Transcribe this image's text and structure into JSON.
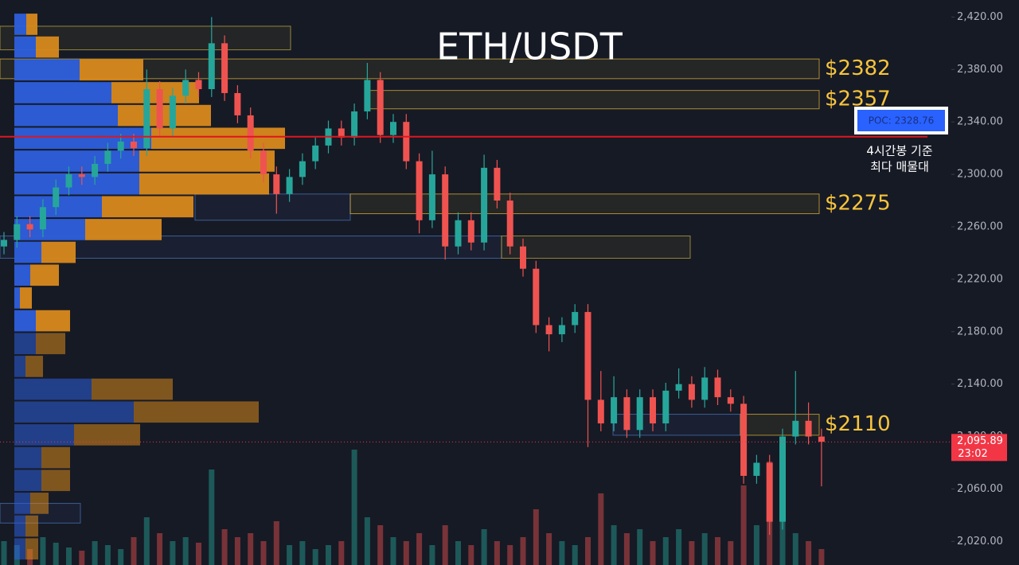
{
  "chart_data": {
    "type": "candlestick",
    "title": "ETH/USDT",
    "ylim": [
      2002,
      2433
    ],
    "yticks": [
      {
        "value": 2020,
        "label": "2,020.00"
      },
      {
        "value": 2060,
        "label": "2,060.00"
      },
      {
        "value": 2100,
        "label": "2,100.00"
      },
      {
        "value": 2140,
        "label": "2,140.00"
      },
      {
        "value": 2180,
        "label": "2,180.00"
      },
      {
        "value": 2220,
        "label": "2,220.00"
      },
      {
        "value": 2260,
        "label": "2,260.00"
      },
      {
        "value": 2300,
        "label": "2,300.00"
      },
      {
        "value": 2340,
        "label": "2,340.00"
      },
      {
        "value": 2380,
        "label": "2,380.00"
      },
      {
        "value": 2420,
        "label": "2,420.00"
      }
    ],
    "up_color": "#26a69a",
    "down_color": "#ef5350",
    "open": [
      2245,
      2250,
      2262,
      2258,
      2275,
      2290,
      2300,
      2298,
      2308,
      2318,
      2325,
      2320,
      2365,
      2335,
      2360,
      2372,
      2365,
      2400,
      2362,
      2345,
      2318,
      2300,
      2285,
      2298,
      2310,
      2322,
      2335,
      2328,
      2348,
      2372,
      2330,
      2340,
      2310,
      2265,
      2300,
      2245,
      2265,
      2248,
      2305,
      2280,
      2245,
      2228,
      2185,
      2178,
      2185,
      2195,
      2128,
      2110,
      2130,
      2105,
      2130,
      2110,
      2135,
      2140,
      2128,
      2145,
      2130,
      2125,
      2070,
      2080,
      2035,
      2100,
      2112,
      2100
    ],
    "high": [
      2256,
      2268,
      2268,
      2281,
      2296,
      2306,
      2306,
      2314,
      2324,
      2331,
      2331,
      2380,
      2371,
      2366,
      2380,
      2378,
      2420,
      2406,
      2368,
      2351,
      2324,
      2306,
      2304,
      2316,
      2328,
      2341,
      2341,
      2354,
      2385,
      2378,
      2346,
      2346,
      2316,
      2318,
      2306,
      2271,
      2271,
      2315,
      2311,
      2286,
      2251,
      2234,
      2191,
      2191,
      2201,
      2201,
      2150,
      2146,
      2136,
      2136,
      2136,
      2141,
      2152,
      2146,
      2153,
      2151,
      2136,
      2131,
      2086,
      2086,
      2106,
      2150,
      2126,
      2106
    ],
    "low": [
      2239,
      2244,
      2252,
      2252,
      2269,
      2284,
      2292,
      2292,
      2302,
      2312,
      2314,
      2314,
      2329,
      2329,
      2354,
      2359,
      2359,
      2356,
      2339,
      2312,
      2294,
      2270,
      2279,
      2292,
      2304,
      2316,
      2322,
      2322,
      2342,
      2324,
      2324,
      2304,
      2255,
      2259,
      2235,
      2239,
      2242,
      2242,
      2274,
      2239,
      2222,
      2179,
      2165,
      2172,
      2179,
      2092,
      2104,
      2104,
      2099,
      2099,
      2104,
      2104,
      2129,
      2122,
      2122,
      2124,
      2119,
      2064,
      2064,
      2025,
      2029,
      2094,
      2094,
      2062
    ],
    "close": [
      2250,
      2262,
      2258,
      2275,
      2290,
      2300,
      2298,
      2308,
      2318,
      2325,
      2320,
      2365,
      2335,
      2360,
      2372,
      2365,
      2400,
      2362,
      2345,
      2318,
      2300,
      2285,
      2298,
      2310,
      2322,
      2335,
      2328,
      2348,
      2372,
      2330,
      2340,
      2310,
      2265,
      2300,
      2245,
      2265,
      2248,
      2305,
      2280,
      2245,
      2228,
      2185,
      2178,
      2185,
      2195,
      2128,
      2110,
      2130,
      2105,
      2130,
      2110,
      2135,
      2140,
      2128,
      2145,
      2130,
      2125,
      2070,
      2080,
      2035,
      2100,
      2112,
      2100,
      2096
    ],
    "volume": [
      30,
      25,
      20,
      35,
      28,
      22,
      18,
      30,
      25,
      20,
      35,
      60,
      40,
      30,
      35,
      28,
      120,
      45,
      35,
      40,
      30,
      55,
      25,
      30,
      20,
      25,
      30,
      145,
      60,
      50,
      35,
      30,
      40,
      25,
      50,
      30,
      25,
      45,
      30,
      25,
      35,
      70,
      40,
      30,
      25,
      35,
      90,
      50,
      40,
      45,
      30,
      35,
      45,
      30,
      40,
      35,
      30,
      100,
      50,
      130,
      90,
      40,
      30,
      20
    ],
    "profile": {
      "buy_color": "#2d5fdc",
      "sell_color": "#d8891c",
      "levels": [
        2414.5,
        2397.1,
        2379.7,
        2362.3,
        2344.9,
        2327.5,
        2310.1,
        2292.7,
        2275.3,
        2257.9,
        2240.5,
        2223.1,
        2205.7,
        2188.3,
        2170.9,
        2153.5,
        2136.1,
        2118.7,
        2101.3,
        2083.9,
        2066.5,
        2049.1,
        2031.7,
        2014.3
      ],
      "buy": [
        15,
        27,
        82,
        122,
        130,
        172,
        157,
        157,
        110,
        89,
        34,
        20,
        7,
        27,
        27,
        14,
        97,
        150,
        75,
        34,
        34,
        20,
        14,
        14
      ],
      "sell": [
        14,
        29,
        80,
        110,
        117,
        168,
        170,
        163,
        115,
        96,
        43,
        36,
        15,
        43,
        37,
        22,
        102,
        157,
        83,
        36,
        36,
        23,
        16,
        16
      ]
    },
    "zones": [
      {
        "label": "$2382",
        "top": 2388,
        "bottom": 2373
      },
      {
        "label": "$2357",
        "top": 2364,
        "bottom": 2350
      },
      {
        "label": "$2275",
        "top": 2285,
        "bottom": 2270
      },
      {
        "label": "$2110",
        "top": 2117,
        "bottom": 2101
      }
    ],
    "zone_color": "#f7c43c",
    "boxes": [
      {
        "top": 2413,
        "bottom": 2395,
        "color": "#c9b040"
      },
      {
        "top": 2285,
        "bottom": 2265,
        "color": "#4a78c0"
      },
      {
        "top": 2253,
        "bottom": 2236,
        "color": "#4a78c0"
      },
      {
        "top": 2253,
        "bottom": 2236,
        "color": "#c9b040"
      },
      {
        "top": 2117,
        "bottom": 2101,
        "color": "#4a78c0"
      },
      {
        "top": 2049,
        "bottom": 2034,
        "color": "#4a78c0"
      }
    ],
    "poc": {
      "value": 2328.76,
      "label": "POC: 2328.76",
      "color": "#e0161e"
    },
    "annotation": [
      "4시간봉 기준",
      "최다 매물대"
    ],
    "last_price": {
      "value": 2095.89,
      "label": "2,095.89",
      "time": "23:02",
      "color": "#f23645"
    }
  }
}
